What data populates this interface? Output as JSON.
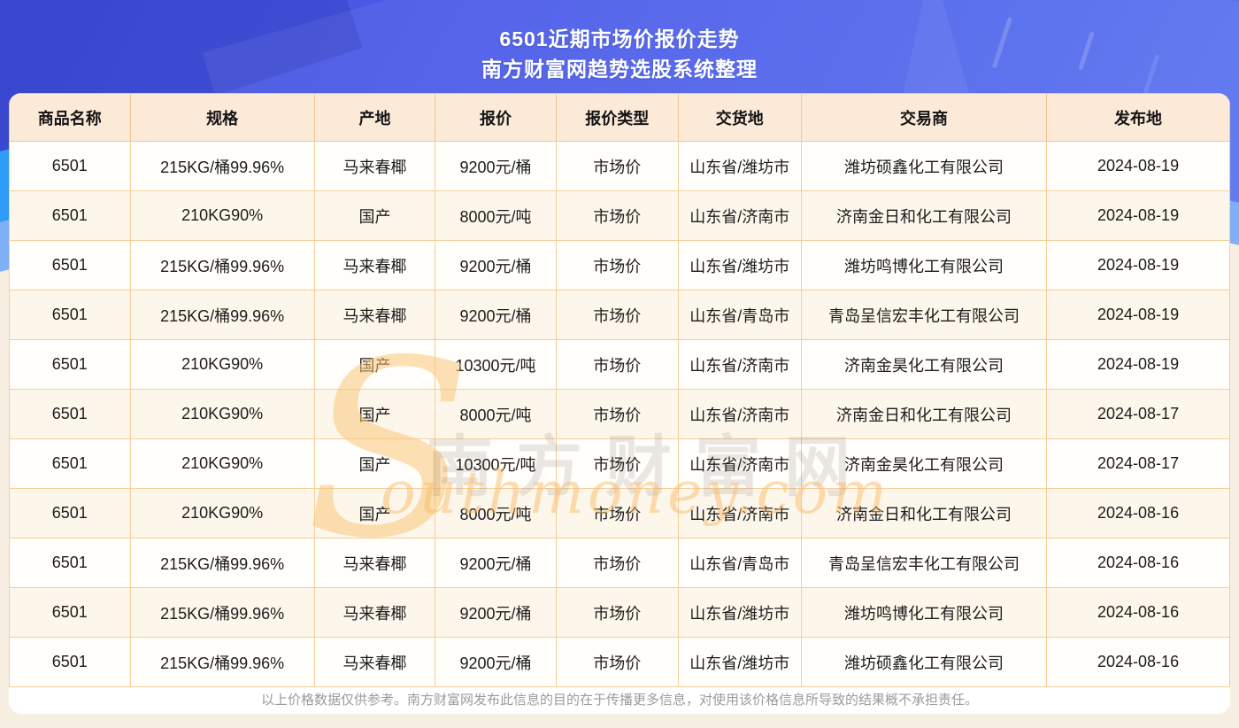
{
  "banner": {
    "title_line1": "6501近期市场价报价走势",
    "title_line2": "南方财富网趋势选股系统整理"
  },
  "chart_data": {
    "type": "table",
    "title": "6501近期市场价报价走势",
    "subtitle": "南方财富网趋势选股系统整理",
    "columns": [
      "商品名称",
      "规格",
      "产地",
      "报价",
      "报价类型",
      "交货地",
      "交易商",
      "发布地"
    ],
    "rows": [
      [
        "6501",
        "215KG/桶99.96%",
        "马来春椰",
        "9200元/桶",
        "市场价",
        "山东省/潍坊市",
        "潍坊硕鑫化工有限公司",
        "2024-08-19"
      ],
      [
        "6501",
        "210KG90%",
        "国产",
        "8000元/吨",
        "市场价",
        "山东省/济南市",
        "济南金日和化工有限公司",
        "2024-08-19"
      ],
      [
        "6501",
        "215KG/桶99.96%",
        "马来春椰",
        "9200元/桶",
        "市场价",
        "山东省/潍坊市",
        "潍坊鸣博化工有限公司",
        "2024-08-19"
      ],
      [
        "6501",
        "215KG/桶99.96%",
        "马来春椰",
        "9200元/桶",
        "市场价",
        "山东省/青岛市",
        "青岛呈信宏丰化工有限公司",
        "2024-08-19"
      ],
      [
        "6501",
        "210KG90%",
        "国产",
        "10300元/吨",
        "市场价",
        "山东省/济南市",
        "济南金昊化工有限公司",
        "2024-08-19"
      ],
      [
        "6501",
        "210KG90%",
        "国产",
        "8000元/吨",
        "市场价",
        "山东省/济南市",
        "济南金日和化工有限公司",
        "2024-08-17"
      ],
      [
        "6501",
        "210KG90%",
        "国产",
        "10300元/吨",
        "市场价",
        "山东省/济南市",
        "济南金昊化工有限公司",
        "2024-08-17"
      ],
      [
        "6501",
        "210KG90%",
        "国产",
        "8000元/吨",
        "市场价",
        "山东省/济南市",
        "济南金日和化工有限公司",
        "2024-08-16"
      ],
      [
        "6501",
        "215KG/桶99.96%",
        "马来春椰",
        "9200元/桶",
        "市场价",
        "山东省/青岛市",
        "青岛呈信宏丰化工有限公司",
        "2024-08-16"
      ],
      [
        "6501",
        "215KG/桶99.96%",
        "马来春椰",
        "9200元/桶",
        "市场价",
        "山东省/潍坊市",
        "潍坊鸣博化工有限公司",
        "2024-08-16"
      ],
      [
        "6501",
        "215KG/桶99.96%",
        "马来春椰",
        "9200元/桶",
        "市场价",
        "山东省/潍坊市",
        "潍坊硕鑫化工有限公司",
        "2024-08-16"
      ]
    ]
  },
  "watermark": {
    "initial": "S",
    "cn": "南方财富网",
    "en": "outhmoney.com"
  },
  "footer": {
    "disclaimer": "以上价格数据仅供参考。南方财富网发布此信息的目的在于传播更多信息，对使用该价格信息所导致的结果概不承担责任。"
  },
  "colors": {
    "banner_blue": "#4c5ce8",
    "bright_blue_accent": "#2e9df8",
    "light_blue_accent": "#7fb0f7",
    "header_bg": "#fcead8",
    "row_alt_bg": "#fdf7eb",
    "table_border": "#f3c68f",
    "watermark_orange": "#f9bc6c",
    "page_cream": "#f8efe3",
    "disclaimer_gray": "#9b9b9b"
  }
}
